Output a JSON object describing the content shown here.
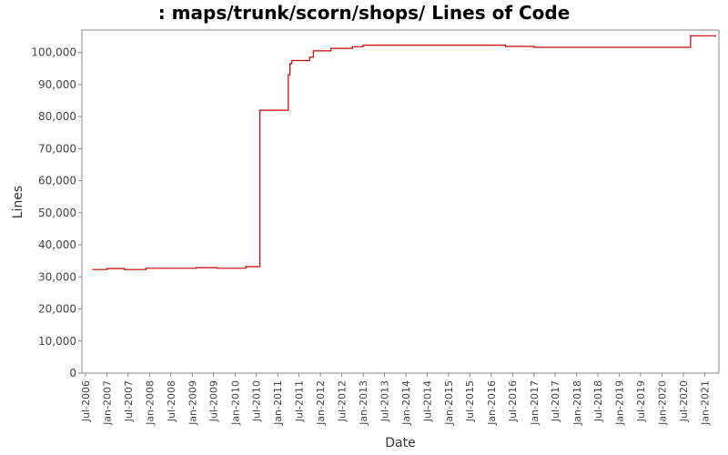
{
  "chart_data": {
    "type": "line",
    "title": ": maps/trunk/scorn/shops/ Lines of Code",
    "xlabel": "Date",
    "ylabel": "Lines",
    "x_ticks": [
      "Jul-2006",
      "Jan-2007",
      "Jul-2007",
      "Jan-2008",
      "Jul-2008",
      "Jan-2009",
      "Jul-2009",
      "Jan-2010",
      "Jul-2010",
      "Jan-2011",
      "Jul-2011",
      "Jan-2012",
      "Jul-2012",
      "Jan-2013",
      "Jul-2013",
      "Jan-2014",
      "Jul-2014",
      "Jan-2015",
      "Jul-2015",
      "Jan-2016",
      "Jul-2016",
      "Jan-2017",
      "Jul-2017",
      "Jan-2018",
      "Jul-2018",
      "Jan-2019",
      "Jul-2019",
      "Jan-2020",
      "Jul-2020",
      "Jan-2021"
    ],
    "y_ticks": [
      "0",
      "10,000",
      "20,000",
      "30,000",
      "40,000",
      "50,000",
      "60,000",
      "70,000",
      "80,000",
      "90,000",
      "100,000"
    ],
    "xlim": [
      "2006-06-01",
      "2021-05-01"
    ],
    "ylim": [
      0,
      107000
    ],
    "line_color": "#cc0000",
    "grid": false,
    "series": [
      {
        "step": true,
        "points": [
          [
            "2006-09-01",
            32300
          ],
          [
            "2007-01-01",
            32600
          ],
          [
            "2007-06-01",
            32300
          ],
          [
            "2007-12-01",
            32700
          ],
          [
            "2009-02-01",
            32900
          ],
          [
            "2009-08-01",
            32700
          ],
          [
            "2010-04-01",
            33200
          ],
          [
            "2010-08-01",
            82000
          ],
          [
            "2011-04-01",
            93000
          ],
          [
            "2011-04-15",
            96500
          ],
          [
            "2011-05-01",
            97500
          ],
          [
            "2011-10-01",
            98500
          ],
          [
            "2011-11-01",
            100500
          ],
          [
            "2012-04-01",
            101300
          ],
          [
            "2012-10-01",
            101800
          ],
          [
            "2013-01-01",
            102300
          ],
          [
            "2016-05-01",
            101900
          ],
          [
            "2017-01-01",
            101600
          ],
          [
            "2020-09-01",
            105200
          ],
          [
            "2021-04-01",
            105000
          ]
        ]
      }
    ]
  }
}
